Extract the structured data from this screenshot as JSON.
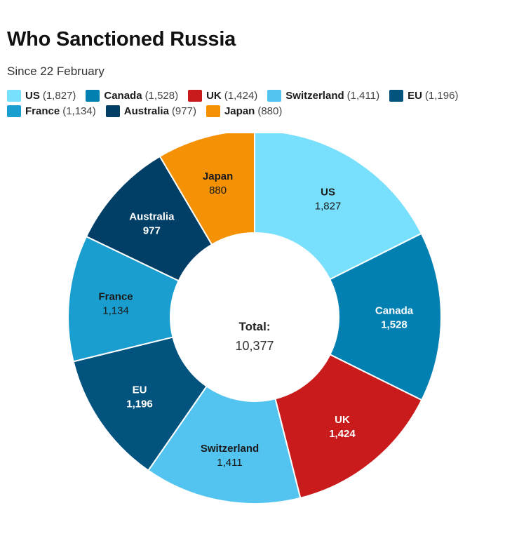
{
  "chart_data": {
    "type": "pie",
    "variant": "donut",
    "title": "Who Sanctioned Russia",
    "subtitle": "Since 22 February",
    "center": {
      "label": "Total:",
      "value": "10,377"
    },
    "legend_position": "top",
    "slices": [
      {
        "name": "US",
        "value": 1827,
        "display": "1,827",
        "color": "#78E0FC",
        "text_color": "#1a1a1a",
        "bold_value": false
      },
      {
        "name": "Canada",
        "value": 1528,
        "display": "1,528",
        "color": "#0280B2",
        "text_color": "#ffffff",
        "bold_value": true
      },
      {
        "name": "UK",
        "value": 1424,
        "display": "1,424",
        "color": "#C91B1B",
        "text_color": "#ffffff",
        "bold_value": true
      },
      {
        "name": "Switzerland",
        "value": 1411,
        "display": "1,411",
        "color": "#53C3EF",
        "text_color": "#1a1a1a",
        "bold_value": false
      },
      {
        "name": "EU",
        "value": 1196,
        "display": "1,196",
        "color": "#02537E",
        "text_color": "#ffffff",
        "bold_value": true
      },
      {
        "name": "France",
        "value": 1134,
        "display": "1,134",
        "color": "#1A9ECF",
        "text_color": "#1a1a1a",
        "bold_value": false
      },
      {
        "name": "Australia",
        "value": 977,
        "display": "977",
        "color": "#023F66",
        "text_color": "#ffffff",
        "bold_value": true
      },
      {
        "name": "Japan",
        "value": 880,
        "display": "880",
        "color": "#F59105",
        "text_color": "#1a1a1a",
        "bold_value": false
      }
    ]
  }
}
